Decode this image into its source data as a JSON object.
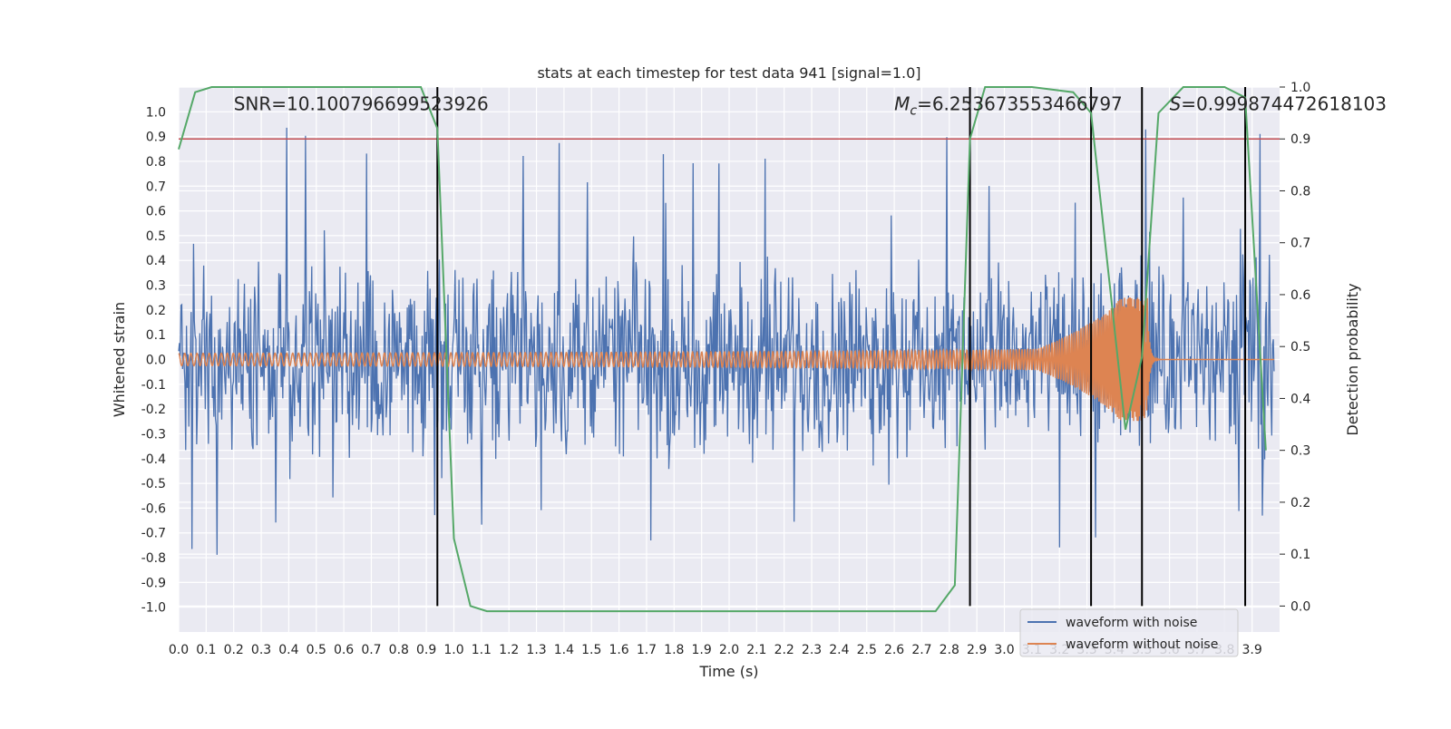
{
  "chart_data": {
    "type": "line",
    "title": "stats at each timestep for test data 941 [signal=1.0]",
    "xlabel": "Time (s)",
    "ylabel": "Whitened strain",
    "y2label": "Detection probability",
    "xlim": [
      0.0,
      4.0
    ],
    "ylim": [
      -1.1,
      1.1
    ],
    "y2lim": [
      -0.05,
      1.0
    ],
    "x_ticks": [
      "0.0",
      "0.1",
      "0.2",
      "0.3",
      "0.4",
      "0.5",
      "0.6",
      "0.7",
      "0.8",
      "0.9",
      "1.0",
      "1.1",
      "1.2",
      "1.3",
      "1.4",
      "1.5",
      "1.6",
      "1.7",
      "1.8",
      "1.9",
      "2.0",
      "2.1",
      "2.2",
      "2.3",
      "2.4",
      "2.5",
      "2.6",
      "2.7",
      "2.8",
      "2.9",
      "3.0",
      "3.1",
      "3.2",
      "3.3",
      "3.4",
      "3.5",
      "3.6",
      "3.7",
      "3.8",
      "3.9"
    ],
    "y_ticks": [
      "1.0",
      "0.9",
      "0.8",
      "0.7",
      "0.6",
      "0.5",
      "0.4",
      "0.3",
      "0.2",
      "0.1",
      "0.0",
      "-0.1",
      "-0.2",
      "-0.3",
      "-0.4",
      "-0.5",
      "-0.6",
      "-0.7",
      "-0.8",
      "-0.9",
      "-1.0"
    ],
    "y2_ticks": [
      "1.0",
      "0.9",
      "0.8",
      "0.7",
      "0.6",
      "0.5",
      "0.4",
      "0.3",
      "0.2",
      "0.1",
      "0.0"
    ],
    "threshold": 0.9,
    "vlines": [
      0.94,
      2.875,
      3.315,
      3.5,
      3.875
    ],
    "series": [
      {
        "name": "waveform with noise",
        "color": "#4c72b0",
        "kind": "noise",
        "amplitude_range": [
          -0.85,
          0.95
        ]
      },
      {
        "name": "waveform without noise",
        "color": "#dd8452",
        "kind": "chirp",
        "merger_time": 3.52,
        "amplitude_range": [
          -0.25,
          0.25
        ]
      },
      {
        "name": "detection probability",
        "color": "#55a868",
        "x": [
          0.0,
          0.06,
          0.12,
          0.2,
          0.5,
          0.88,
          0.94,
          1.0,
          1.06,
          1.12,
          1.5,
          2.0,
          2.5,
          2.75,
          2.82,
          2.875,
          2.93,
          2.98,
          3.1,
          3.25,
          3.315,
          3.44,
          3.5,
          3.56,
          3.65,
          3.8,
          3.875,
          3.95
        ],
        "y": [
          0.88,
          0.99,
          1.0,
          1.0,
          1.0,
          1.0,
          0.92,
          0.13,
          0.0,
          -0.01,
          -0.01,
          -0.01,
          -0.01,
          -0.01,
          0.04,
          0.9,
          1.0,
          1.0,
          1.0,
          0.99,
          0.95,
          0.34,
          0.48,
          0.95,
          1.0,
          1.0,
          0.98,
          0.3
        ]
      }
    ],
    "annotations": [
      {
        "text": "SNR=10.100796699523926",
        "x": 0.2,
        "y": 1.0
      },
      {
        "text_main": "M",
        "text_sub": "c",
        "text_rest": "=6.253673553466797",
        "x": 2.6,
        "y": 1.0
      },
      {
        "text_main": "S",
        "text_rest": "=0.999874472618103",
        "x": 3.6,
        "y": 1.0
      }
    ],
    "legend": {
      "position": "bottom-right",
      "entries": [
        "waveform with noise",
        "waveform without noise"
      ]
    },
    "grid": true,
    "colors": {
      "background": "#eaeaf2",
      "grid": "#ffffff",
      "threshold": "#c44e52",
      "vline": "#000000"
    }
  }
}
